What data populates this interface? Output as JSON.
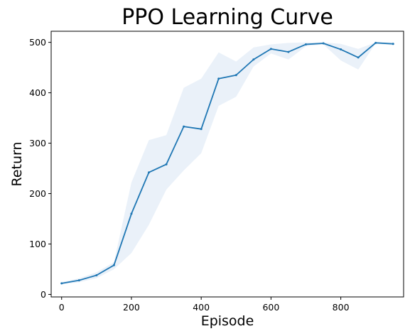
{
  "chart_data": {
    "type": "line",
    "title": "PPO Learning Curve",
    "xlabel": "Episode",
    "ylabel": "Return",
    "xlim": [
      -30,
      980
    ],
    "ylim": [
      -5,
      522
    ],
    "x_ticks": [
      0,
      200,
      400,
      600,
      800
    ],
    "y_ticks": [
      0,
      100,
      200,
      300,
      400,
      500
    ],
    "grid": false,
    "legend": "none",
    "line_color": "#1f77b4",
    "band_color": "#dce8f5",
    "band_opacity": 0.6,
    "series": [
      {
        "x": [
          0,
          50,
          100,
          150,
          200,
          250,
          300,
          350,
          400,
          450,
          500,
          550,
          600,
          650,
          700,
          750,
          800,
          850,
          900,
          950
        ],
        "values": [
          22,
          28,
          38,
          58,
          160,
          242,
          258,
          333,
          328,
          428,
          435,
          466,
          487,
          481,
          496,
          498,
          486,
          470,
          499,
          497
        ],
        "upper": [
          24,
          32,
          44,
          64,
          222,
          306,
          316,
          410,
          428,
          480,
          462,
          490,
          496,
          499,
          500,
          500,
          497,
          487,
          500,
          500
        ],
        "lower": [
          20,
          24,
          32,
          50,
          82,
          138,
          208,
          246,
          280,
          374,
          392,
          452,
          478,
          466,
          492,
          496,
          464,
          446,
          498,
          494
        ]
      }
    ]
  }
}
